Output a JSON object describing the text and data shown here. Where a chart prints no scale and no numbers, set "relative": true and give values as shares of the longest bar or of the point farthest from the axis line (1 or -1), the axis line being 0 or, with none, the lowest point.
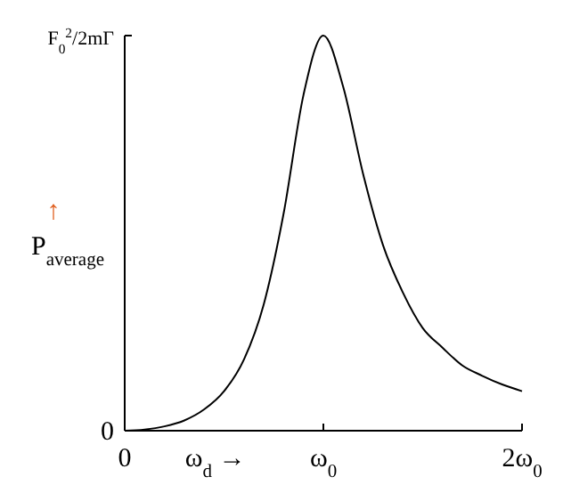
{
  "chart_data": {
    "type": "line",
    "relative": true,
    "xlabel": "ω$_{d}$ →",
    "ylabel": "P$_{average}$",
    "annotations": [
      "↑",
      "F$_{0}$$^{2}$/2mΓ",
      "0"
    ],
    "categories": [
      "0",
      null,
      null,
      null,
      null,
      null,
      null,
      null,
      null,
      null,
      "ω$_{0}$",
      null,
      null,
      null,
      null,
      null,
      null,
      null,
      null,
      null,
      "2ω$_{0}$"
    ],
    "series": [
      {
        "color": "#000000",
        "values": [
          0,
          0.003,
          0.011,
          0.026,
          0.054,
          0.1,
          0.18,
          0.32,
          0.55,
          0.85,
          1,
          0.87,
          0.65,
          0.47,
          0.35,
          0.26,
          0.21,
          0.165,
          0.139,
          0.117,
          0.1
        ]
      }
    ],
    "grid": false,
    "line_style": "solid"
  }
}
